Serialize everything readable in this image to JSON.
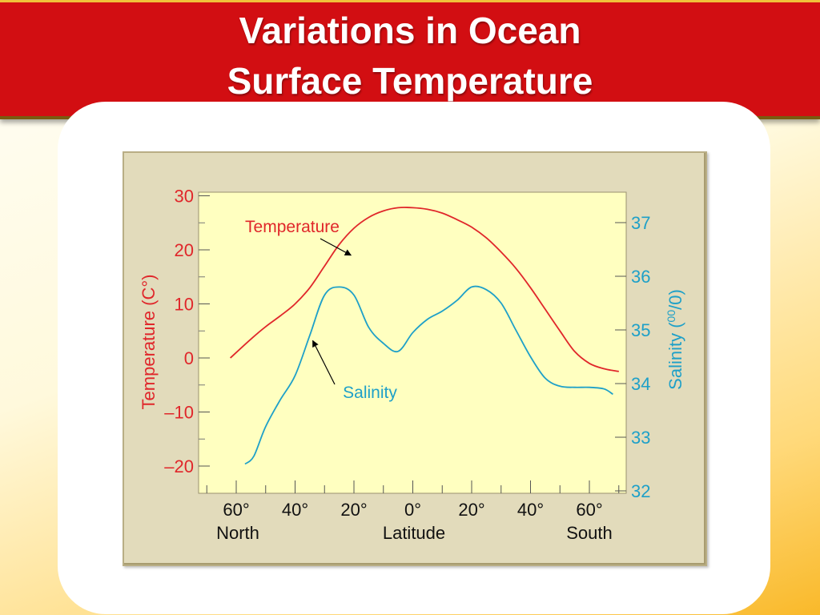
{
  "slide": {
    "title_line1": "Variations in Ocean",
    "title_line2": "Surface Temperature"
  },
  "colors": {
    "title_bar": "#d20e12",
    "temperature": "#e0262a",
    "salinity": "#1ea0c8",
    "plot_background": "#ffffc0",
    "panel": "#e2dbbb"
  },
  "chart_data": {
    "type": "line",
    "x_tick_labels": [
      "60°",
      "40°",
      "20°",
      "0°",
      "20°",
      "40°",
      "60°"
    ],
    "x_tick_values": [
      -60,
      -40,
      -20,
      0,
      20,
      40,
      60
    ],
    "x_direction_labels": {
      "north": "North",
      "south": "South"
    },
    "xlabel": "Latitude",
    "xlim": [
      70,
      -70
    ],
    "x_note": "x values are latitude in degrees; positive = North (left), negative = South (right)",
    "ylabel_left": "Temperature (C°)",
    "ylabel_right_main": "Salinity (",
    "ylabel_right_sup": "00",
    "ylabel_right_end": "/0)",
    "y_left_ticks": [
      "30",
      "20",
      "10",
      "0",
      "–10",
      "–20"
    ],
    "y_left_tick_values": [
      30,
      20,
      10,
      0,
      -10,
      -20
    ],
    "ylim_left": [
      -25,
      30
    ],
    "y_right_ticks": [
      "37",
      "36",
      "35",
      "34",
      "33",
      "32"
    ],
    "y_right_tick_values": [
      37,
      36,
      35,
      34,
      33,
      32
    ],
    "ylim_right": [
      32,
      37.5
    ],
    "grid": false,
    "series": [
      {
        "name": "Temperature",
        "axis": "left",
        "x": [
          62,
          55,
          50,
          45,
          40,
          35,
          30,
          25,
          20,
          15,
          10,
          5,
          0,
          -5,
          -10,
          -15,
          -20,
          -25,
          -30,
          -35,
          -40,
          -45,
          -50,
          -55,
          -60,
          -65,
          -70
        ],
        "y": [
          0,
          3.5,
          5.8,
          7.8,
          10,
          13,
          17,
          21,
          24,
          26,
          27.2,
          27.8,
          27.8,
          27.5,
          26.8,
          25.6,
          24.2,
          22.2,
          19.6,
          16.6,
          13,
          9,
          5,
          1.2,
          -1,
          -2,
          -2.5
        ]
      },
      {
        "name": "Salinity",
        "axis": "right",
        "x": [
          57,
          54,
          50,
          45,
          40,
          35,
          30,
          25,
          20,
          15,
          10,
          5,
          0,
          -5,
          -10,
          -15,
          -20,
          -25,
          -30,
          -35,
          -40,
          -45,
          -50,
          -55,
          -60,
          -65,
          -68
        ],
        "y": [
          32.5,
          32.65,
          33.2,
          33.7,
          34.15,
          34.9,
          35.65,
          35.8,
          35.65,
          35.05,
          34.75,
          34.6,
          34.95,
          35.2,
          35.35,
          35.55,
          35.8,
          35.75,
          35.5,
          35.0,
          34.5,
          34.1,
          33.95,
          33.93,
          33.93,
          33.9,
          33.8
        ]
      }
    ],
    "annotations": [
      {
        "text": "Temperature",
        "series": "Temperature",
        "arrow_to": {
          "x": 21,
          "y": 19
        }
      },
      {
        "text": "Salinity",
        "series": "Salinity",
        "arrow_to": {
          "x": 34,
          "y": 34.8
        }
      }
    ]
  }
}
